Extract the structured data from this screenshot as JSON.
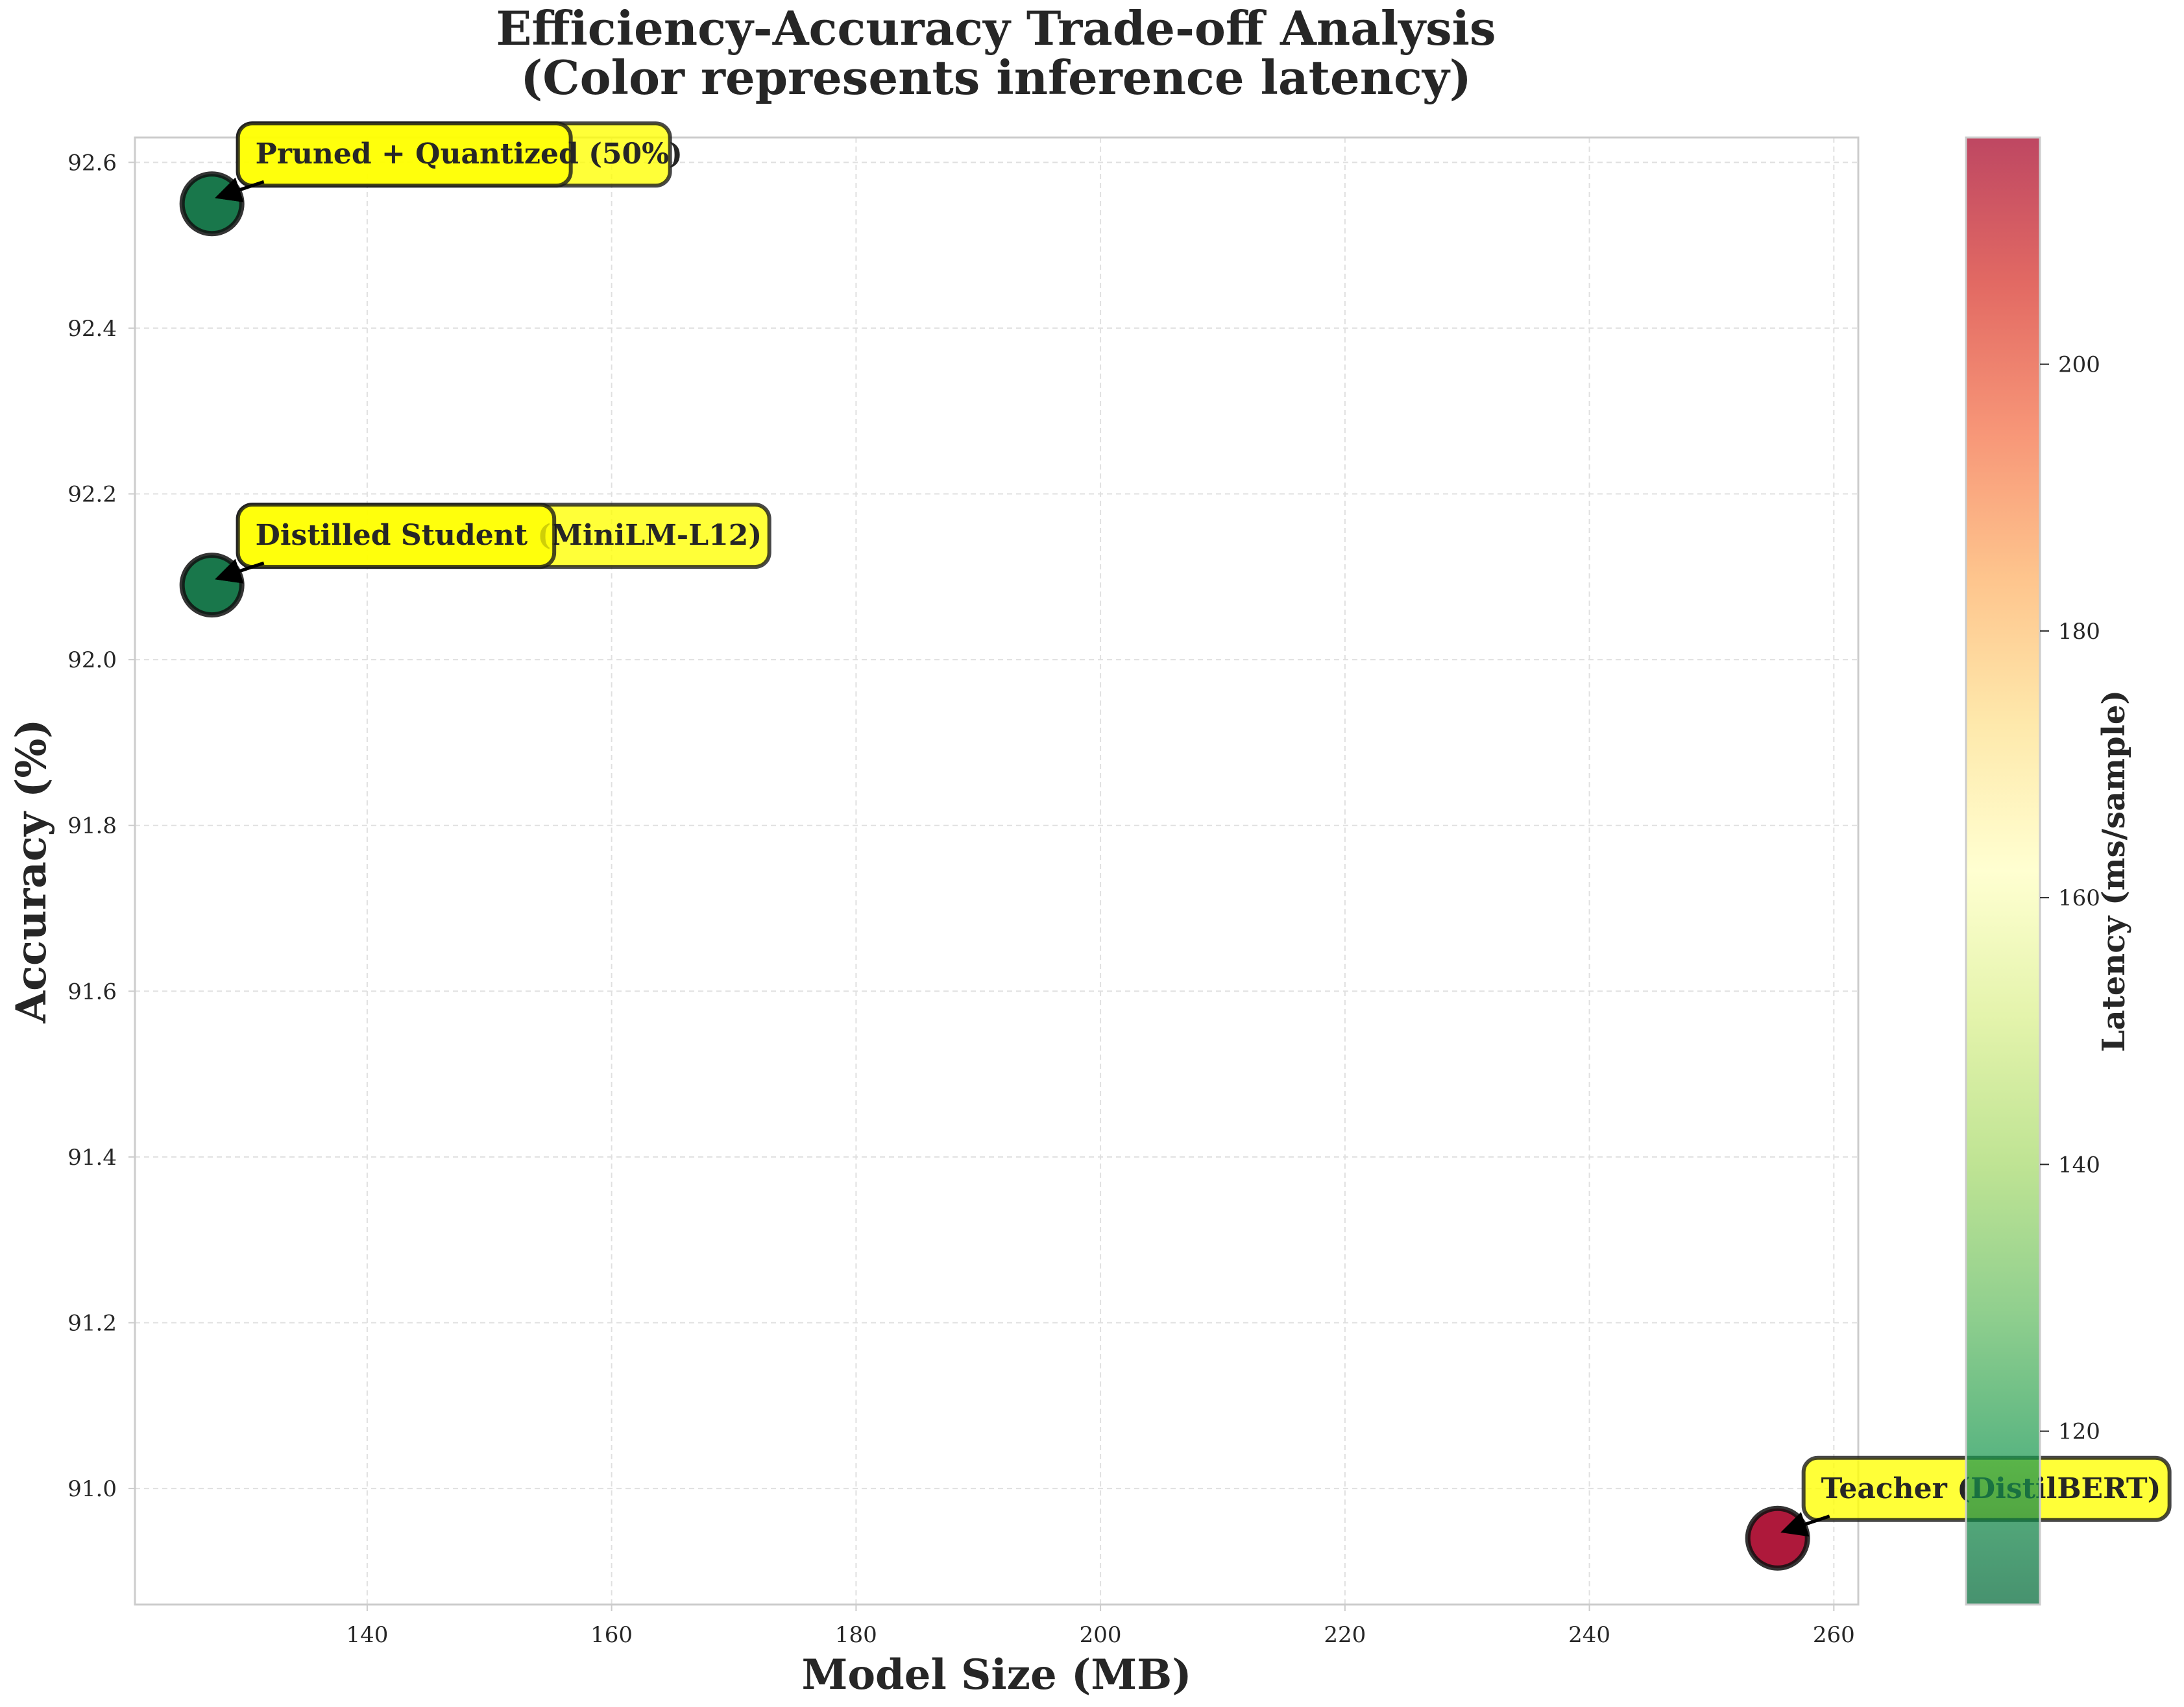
{
  "title": {
    "line1": "Efficiency-Accuracy Trade-off Analysis",
    "line2": "(Color represents inference latency)"
  },
  "chart_data": {
    "type": "scatter",
    "title": "Efficiency-Accuracy Trade-off Analysis\n(Color represents inference latency)",
    "xlabel": "Model Size (MB)",
    "ylabel": "Accuracy (%)",
    "xlim": [
      121,
      262
    ],
    "ylim": [
      90.86,
      92.63
    ],
    "xticks": [
      140,
      160,
      180,
      200,
      220,
      240,
      260
    ],
    "yticks": [
      91.0,
      91.2,
      91.4,
      91.6,
      91.8,
      92.0,
      92.2,
      92.4,
      92.6
    ],
    "grid": true,
    "colormap": "RdYlGn_r",
    "colorbar": {
      "label": "Latency (ms/sample)",
      "range": [
        107,
        217
      ],
      "ticks": [
        120,
        140,
        160,
        180,
        200
      ]
    },
    "points": [
      {
        "label": "Teacher (DistilBERT)",
        "x": 255.4,
        "y": 90.94,
        "latency": 217
      },
      {
        "label": "Distilled Student (MiniLM-L12)",
        "x": 127.3,
        "y": 92.09,
        "latency": 107
      },
      {
        "label": "Distilled Student",
        "x": 127.3,
        "y": 92.09,
        "latency": 107
      },
      {
        "label": "Pruned + Quantized (50%)",
        "x": 127.3,
        "y": 92.55,
        "latency": 107
      },
      {
        "label": "Pruned + Quantized",
        "x": 127.3,
        "y": 92.55,
        "latency": 107
      }
    ],
    "colors": {
      "annotation_fill": "#ffff00",
      "annotation_edge": "#1a1a1a",
      "grid": "#e0e0e0"
    }
  }
}
